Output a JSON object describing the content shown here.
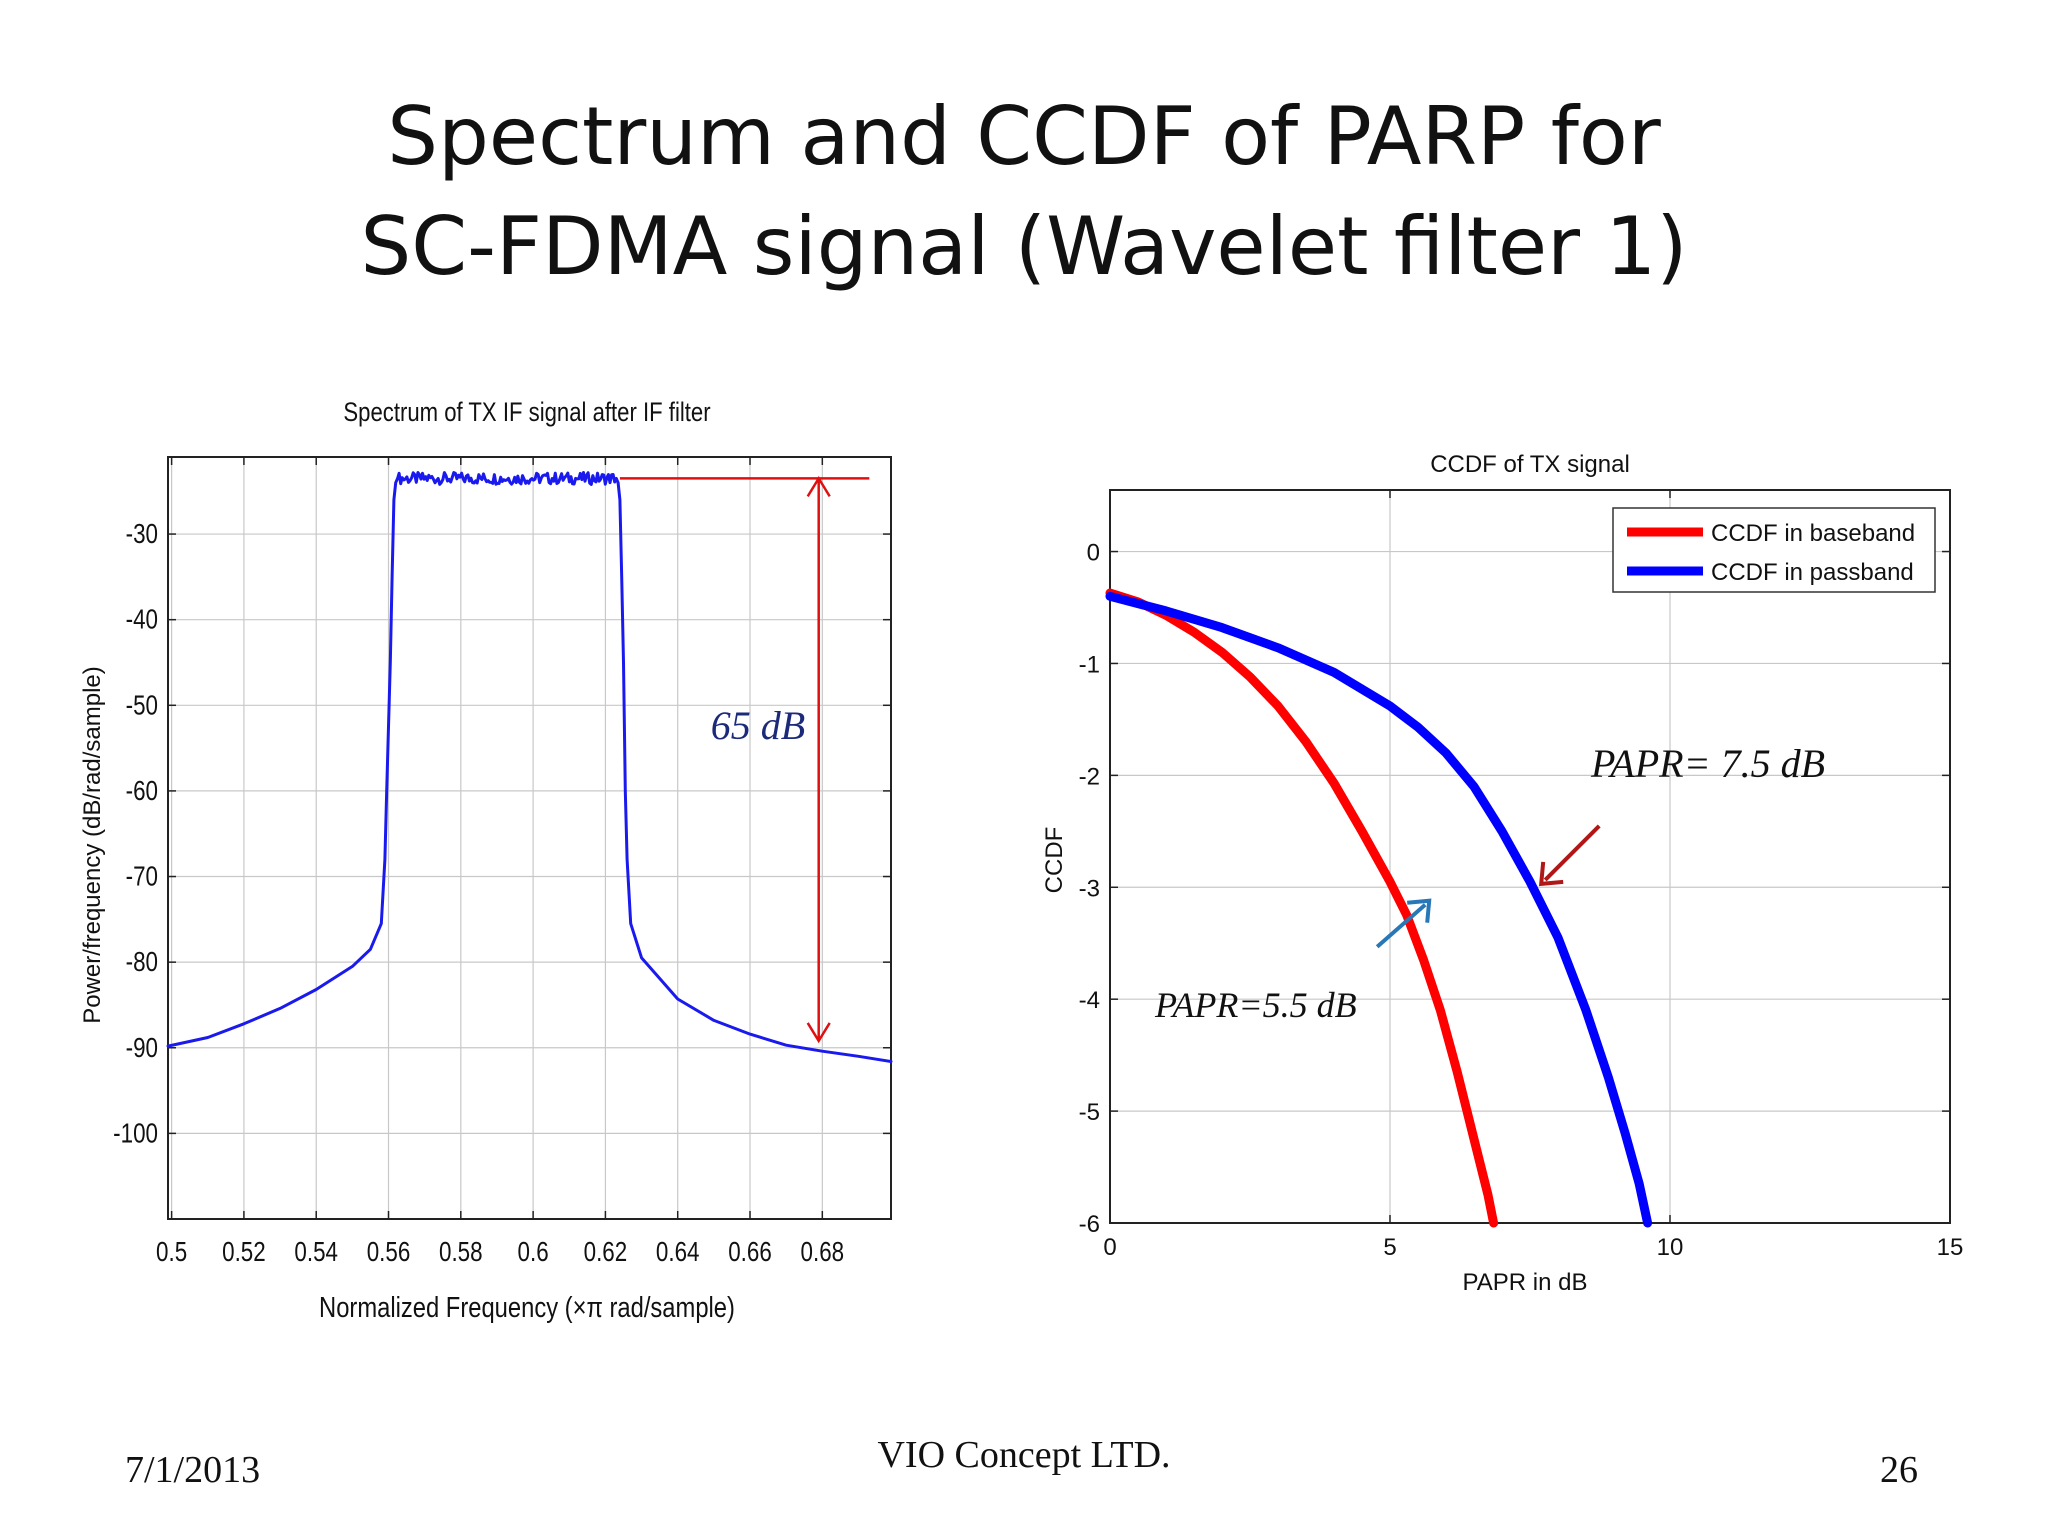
{
  "slide": {
    "title_line1": "Spectrum and CCDF of PARP for",
    "title_line2": "SC-FDMA signal (Wavelet filter 1)",
    "footer_date": "7/1/2013",
    "footer_company": "VIO Concept LTD.",
    "footer_page": "26"
  },
  "chart_data": [
    {
      "type": "line",
      "title": "Spectrum of TX IF signal after IF filter",
      "xlabel": "Normalized Frequency  (×π rad/sample)",
      "ylabel": "Power/frequency  (dB/rad/sample)",
      "xlim": [
        0.499,
        0.699
      ],
      "ylim": [
        -110,
        -21
      ],
      "xticks": [
        0.5,
        0.52,
        0.54,
        0.56,
        0.58,
        0.6,
        0.62,
        0.64,
        0.66,
        0.68
      ],
      "xtick_labels": [
        "0.5",
        "0.52",
        "0.54",
        "0.56",
        "0.58",
        "0.6",
        "0.62",
        "0.64",
        "0.66",
        "0.68"
      ],
      "yticks": [
        -30,
        -40,
        -50,
        -60,
        -70,
        -80,
        -90,
        -100
      ],
      "ytick_labels": [
        "-30",
        "-40",
        "-50",
        "-60",
        "-70",
        "-80",
        "-90",
        "-100"
      ],
      "grid": true,
      "series": [
        {
          "color": "#1a1aee",
          "x": [
            0.499,
            0.51,
            0.52,
            0.53,
            0.54,
            0.55,
            0.555,
            0.558,
            0.559,
            0.5595,
            0.5605,
            0.561,
            0.5615,
            0.562,
            0.5625,
            0.623,
            0.6235,
            0.624,
            0.6245,
            0.625,
            0.6255,
            0.626,
            0.627,
            0.63,
            0.64,
            0.65,
            0.66,
            0.67,
            0.68,
            0.69,
            0.699
          ],
          "y": [
            -89.8,
            -88.8,
            -87.2,
            -85.4,
            -83.2,
            -80.5,
            -78.5,
            -75.5,
            -68,
            -60,
            -45,
            -35,
            -26,
            -24,
            -23.5,
            -23.5,
            -24,
            -26,
            -35,
            -45,
            -60,
            -68,
            -75.5,
            -79.5,
            -84.3,
            -86.8,
            -88.4,
            -89.7,
            -90.4,
            -91,
            -91.6
          ]
        }
      ],
      "annotations": [
        {
          "text": "65 dB",
          "color": "#1c2a7a"
        },
        {
          "type": "double-arrow",
          "color": "#e01010",
          "x": 0.679,
          "y_from": -23.5,
          "y_to": -89.2
        },
        {
          "type": "hline",
          "color": "#e01010",
          "x_from": 0.624,
          "x_to": 0.693,
          "y": -23.5
        }
      ]
    },
    {
      "type": "line",
      "title": "CCDF  of TX signal",
      "xlabel": "PAPR in dB",
      "ylabel": "CCDF",
      "xlim": [
        0,
        15
      ],
      "ylim": [
        -6,
        0.55
      ],
      "xticks": [
        0,
        5,
        10,
        15
      ],
      "xtick_labels": [
        "0",
        "5",
        "10",
        "15"
      ],
      "yticks": [
        0,
        -1,
        -2,
        -3,
        -4,
        -5,
        -6
      ],
      "ytick_labels": [
        "0",
        "-1",
        "-2",
        "-3",
        "-4",
        "-5",
        "-6"
      ],
      "grid": true,
      "legend": "top-right",
      "series": [
        {
          "name": "CCDF in baseband",
          "color": "#ff0000",
          "x": [
            0,
            0.5,
            1,
            1.5,
            2,
            2.5,
            3,
            3.5,
            4,
            4.5,
            5,
            5.3,
            5.6,
            5.9,
            6.2,
            6.4,
            6.6,
            6.75,
            6.85
          ],
          "y": [
            -0.37,
            -0.45,
            -0.57,
            -0.72,
            -0.9,
            -1.12,
            -1.38,
            -1.7,
            -2.07,
            -2.5,
            -2.95,
            -3.25,
            -3.65,
            -4.1,
            -4.65,
            -5.05,
            -5.45,
            -5.75,
            -6
          ]
        },
        {
          "name": "CCDF in passband",
          "color": "#0000ff",
          "x": [
            0,
            1,
            2,
            3,
            4,
            5,
            5.5,
            6,
            6.5,
            7,
            7.5,
            8,
            8.5,
            8.9,
            9.2,
            9.45,
            9.6
          ],
          "y": [
            -0.4,
            -0.53,
            -0.68,
            -0.86,
            -1.08,
            -1.38,
            -1.57,
            -1.8,
            -2.1,
            -2.5,
            -2.95,
            -3.45,
            -4.1,
            -4.7,
            -5.2,
            -5.65,
            -6
          ]
        }
      ],
      "annotations": [
        {
          "text": "PAPR= 7.5 dB",
          "color": "#111111"
        },
        {
          "text": "PAPR=5.5 dB",
          "color": "#111111"
        },
        {
          "type": "arrow",
          "color": "#b01818",
          "target_x": 7.7,
          "target_y": -2.97
        },
        {
          "type": "arrow",
          "color": "#2878b8",
          "target_x": 5.7,
          "target_y": -3.12
        }
      ]
    }
  ]
}
